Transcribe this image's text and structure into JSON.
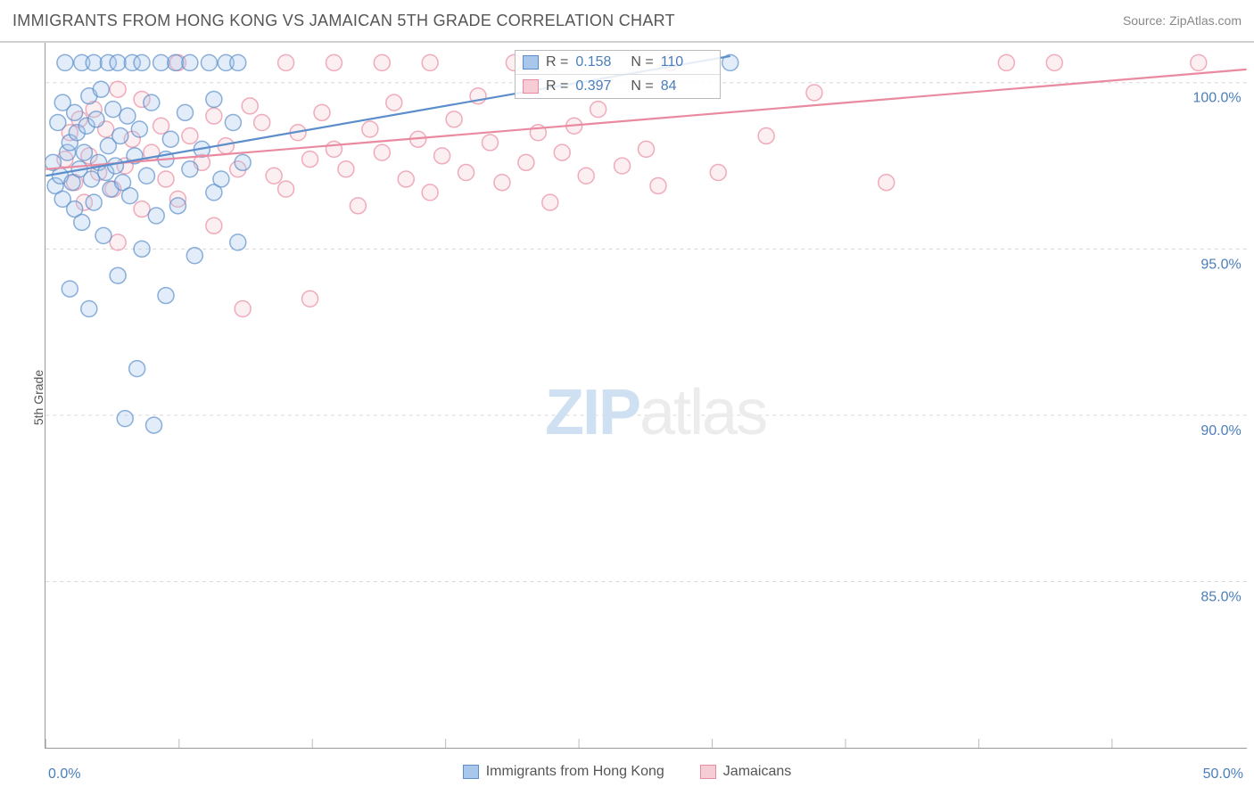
{
  "header": {
    "title": "IMMIGRANTS FROM HONG KONG VS JAMAICAN 5TH GRADE CORRELATION CHART",
    "source_prefix": "Source: ",
    "source_name": "ZipAtlas.com"
  },
  "axes": {
    "y_label": "5th Grade",
    "x_min": 0.0,
    "x_max": 50.0,
    "y_min": 80.0,
    "y_max": 101.2,
    "y_ticks": [
      {
        "v": 85.0,
        "label": "85.0%"
      },
      {
        "v": 90.0,
        "label": "90.0%"
      },
      {
        "v": 95.0,
        "label": "95.0%"
      },
      {
        "v": 100.0,
        "label": "100.0%"
      }
    ],
    "x_tick_positions_pct": [
      0,
      11.1,
      22.2,
      33.3,
      44.4,
      55.5,
      66.6,
      77.7,
      88.8
    ],
    "x_tick_label_0": "0.0%",
    "x_tick_label_max": "50.0%"
  },
  "watermark": {
    "zip": "ZIP",
    "rest": "atlas"
  },
  "series": {
    "hk": {
      "name": "Immigrants from Hong Kong",
      "color_fill": "#a9c7eb",
      "color_stroke": "#5b8ecb",
      "marker_radius": 9,
      "reg_line": {
        "x1": 0.0,
        "y1": 97.2,
        "x2": 28.5,
        "y2": 100.8
      },
      "stats": {
        "r_label": "R =",
        "r": "0.158",
        "n_label": "N =",
        "n": "110"
      },
      "points": [
        [
          0.3,
          97.6
        ],
        [
          0.4,
          96.9
        ],
        [
          0.5,
          98.8
        ],
        [
          0.6,
          97.2
        ],
        [
          0.7,
          99.4
        ],
        [
          0.7,
          96.5
        ],
        [
          0.8,
          100.6
        ],
        [
          0.9,
          97.9
        ],
        [
          1.0,
          98.2
        ],
        [
          1.0,
          93.8
        ],
        [
          1.1,
          97.0
        ],
        [
          1.2,
          99.1
        ],
        [
          1.2,
          96.2
        ],
        [
          1.3,
          98.5
        ],
        [
          1.4,
          97.4
        ],
        [
          1.5,
          100.6
        ],
        [
          1.5,
          95.8
        ],
        [
          1.6,
          97.9
        ],
        [
          1.7,
          98.7
        ],
        [
          1.8,
          99.6
        ],
        [
          1.8,
          93.2
        ],
        [
          1.9,
          97.1
        ],
        [
          2.0,
          100.6
        ],
        [
          2.0,
          96.4
        ],
        [
          2.1,
          98.9
        ],
        [
          2.2,
          97.6
        ],
        [
          2.3,
          99.8
        ],
        [
          2.4,
          95.4
        ],
        [
          2.5,
          97.3
        ],
        [
          2.6,
          100.6
        ],
        [
          2.6,
          98.1
        ],
        [
          2.7,
          96.8
        ],
        [
          2.8,
          99.2
        ],
        [
          2.9,
          97.5
        ],
        [
          3.0,
          100.6
        ],
        [
          3.0,
          94.2
        ],
        [
          3.1,
          98.4
        ],
        [
          3.2,
          97.0
        ],
        [
          3.3,
          89.9
        ],
        [
          3.4,
          99.0
        ],
        [
          3.5,
          96.6
        ],
        [
          3.6,
          100.6
        ],
        [
          3.7,
          97.8
        ],
        [
          3.8,
          91.4
        ],
        [
          3.9,
          98.6
        ],
        [
          4.0,
          100.6
        ],
        [
          4.0,
          95.0
        ],
        [
          4.2,
          97.2
        ],
        [
          4.4,
          99.4
        ],
        [
          4.5,
          89.7
        ],
        [
          4.6,
          96.0
        ],
        [
          4.8,
          100.6
        ],
        [
          5.0,
          97.7
        ],
        [
          5.0,
          93.6
        ],
        [
          5.2,
          98.3
        ],
        [
          5.4,
          100.6
        ],
        [
          5.5,
          96.3
        ],
        [
          5.8,
          99.1
        ],
        [
          6.0,
          97.4
        ],
        [
          6.0,
          100.6
        ],
        [
          6.2,
          94.8
        ],
        [
          6.5,
          98.0
        ],
        [
          6.8,
          100.6
        ],
        [
          7.0,
          96.7
        ],
        [
          7.0,
          99.5
        ],
        [
          7.3,
          97.1
        ],
        [
          7.5,
          100.6
        ],
        [
          7.8,
          98.8
        ],
        [
          8.0,
          100.6
        ],
        [
          8.0,
          95.2
        ],
        [
          8.2,
          97.6
        ],
        [
          28.5,
          100.6
        ]
      ]
    },
    "jm": {
      "name": "Jamaicans",
      "color_fill": "#f6cdd4",
      "color_stroke": "#e98aa0",
      "marker_radius": 9,
      "reg_line": {
        "x1": 0.0,
        "y1": 97.4,
        "x2": 50.0,
        "y2": 100.4
      },
      "stats": {
        "r_label": "R =",
        "r": "0.397",
        "n_label": "N =",
        "n": "84"
      },
      "points": [
        [
          0.8,
          97.7
        ],
        [
          1.0,
          98.5
        ],
        [
          1.2,
          97.0
        ],
        [
          1.4,
          98.9
        ],
        [
          1.6,
          96.4
        ],
        [
          1.8,
          97.8
        ],
        [
          2.0,
          99.2
        ],
        [
          2.2,
          97.3
        ],
        [
          2.5,
          98.6
        ],
        [
          2.8,
          96.8
        ],
        [
          3.0,
          99.8
        ],
        [
          3.0,
          95.2
        ],
        [
          3.3,
          97.5
        ],
        [
          3.6,
          98.3
        ],
        [
          4.0,
          96.2
        ],
        [
          4.0,
          99.5
        ],
        [
          4.4,
          97.9
        ],
        [
          4.8,
          98.7
        ],
        [
          5.0,
          97.1
        ],
        [
          5.5,
          100.6
        ],
        [
          5.5,
          96.5
        ],
        [
          6.0,
          98.4
        ],
        [
          6.5,
          97.6
        ],
        [
          7.0,
          99.0
        ],
        [
          7.0,
          95.7
        ],
        [
          7.5,
          98.1
        ],
        [
          8.0,
          97.4
        ],
        [
          8.2,
          93.2
        ],
        [
          8.5,
          99.3
        ],
        [
          9.0,
          98.8
        ],
        [
          9.5,
          97.2
        ],
        [
          10.0,
          96.8
        ],
        [
          10.0,
          100.6
        ],
        [
          10.5,
          98.5
        ],
        [
          11.0,
          97.7
        ],
        [
          11.0,
          93.5
        ],
        [
          11.5,
          99.1
        ],
        [
          12.0,
          98.0
        ],
        [
          12.0,
          100.6
        ],
        [
          12.5,
          97.4
        ],
        [
          13.0,
          96.3
        ],
        [
          13.5,
          98.6
        ],
        [
          14.0,
          97.9
        ],
        [
          14.0,
          100.6
        ],
        [
          14.5,
          99.4
        ],
        [
          15.0,
          97.1
        ],
        [
          15.5,
          98.3
        ],
        [
          16.0,
          100.6
        ],
        [
          16.0,
          96.7
        ],
        [
          16.5,
          97.8
        ],
        [
          17.0,
          98.9
        ],
        [
          17.5,
          97.3
        ],
        [
          18.0,
          99.6
        ],
        [
          18.5,
          98.2
        ],
        [
          19.0,
          97.0
        ],
        [
          19.5,
          100.6
        ],
        [
          20.0,
          97.6
        ],
        [
          20.5,
          98.5
        ],
        [
          21.0,
          96.4
        ],
        [
          21.5,
          97.9
        ],
        [
          22.0,
          98.7
        ],
        [
          22.5,
          97.2
        ],
        [
          23.0,
          99.2
        ],
        [
          24.0,
          97.5
        ],
        [
          25.0,
          98.0
        ],
        [
          25.5,
          96.9
        ],
        [
          26.0,
          100.6
        ],
        [
          28.0,
          97.3
        ],
        [
          30.0,
          98.4
        ],
        [
          32.0,
          99.7
        ],
        [
          35.0,
          97.0
        ],
        [
          40.0,
          100.6
        ],
        [
          42.0,
          100.6
        ],
        [
          48.0,
          100.6
        ]
      ]
    }
  },
  "legend": {
    "items": [
      {
        "key": "hk"
      },
      {
        "key": "jm"
      }
    ]
  },
  "colors": {
    "title_text": "#555555",
    "axis_value": "#4a7ebb",
    "grid": "#d8d8d8",
    "background": "#ffffff"
  }
}
